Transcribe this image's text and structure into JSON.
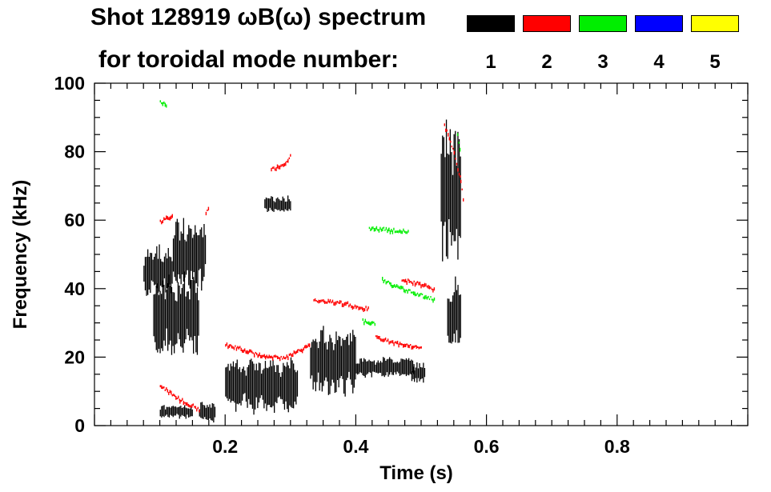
{
  "chart_data": {
    "type": "heatmap",
    "title_line1": "Shot 128919 ωB(ω) spectrum",
    "title_line2": "for toroidal mode number:",
    "xlabel": "Time (s)",
    "ylabel": "Frequency (kHz)",
    "xlim": [
      0.0,
      1.0
    ],
    "ylim": [
      0,
      100
    ],
    "xticks": [
      0.2,
      0.4,
      0.6,
      0.8
    ],
    "yticks": [
      0,
      20,
      40,
      60,
      80,
      100
    ],
    "grid": false,
    "legend_placement": "top-right",
    "legend": [
      {
        "label": "1",
        "color": "#000000"
      },
      {
        "label": "2",
        "color": "#ff0000"
      },
      {
        "label": "3",
        "color": "#00ee00"
      },
      {
        "label": "4",
        "color": "#0000ff"
      },
      {
        "label": "5",
        "color": "#ffff00"
      }
    ],
    "series": [
      {
        "mode": "1",
        "color": "#000000",
        "blobs": [
          {
            "t": [
              0.075,
              0.12
            ],
            "f": [
              38,
              52
            ]
          },
          {
            "t": [
              0.09,
              0.16
            ],
            "f": [
              20,
              45
            ]
          },
          {
            "t": [
              0.12,
              0.17
            ],
            "f": [
              40,
              60
            ]
          },
          {
            "t": [
              0.1,
              0.15
            ],
            "f": [
              2,
              6
            ]
          },
          {
            "t": [
              0.16,
              0.185
            ],
            "f": [
              1,
              7
            ]
          },
          {
            "t": [
              0.2,
              0.31
            ],
            "f": [
              4,
              20
            ]
          },
          {
            "t": [
              0.26,
              0.3
            ],
            "f": [
              62,
              67
            ]
          },
          {
            "t": [
              0.33,
              0.4
            ],
            "f": [
              9,
              28
            ]
          },
          {
            "t": [
              0.4,
              0.49
            ],
            "f": [
              14,
              20
            ]
          },
          {
            "t": [
              0.485,
              0.505
            ],
            "f": [
              12,
              18
            ]
          },
          {
            "t": [
              0.53,
              0.56
            ],
            "f": [
              45,
              90
            ]
          },
          {
            "t": [
              0.54,
              0.56
            ],
            "f": [
              22,
              42
            ]
          }
        ]
      },
      {
        "mode": "2",
        "color": "#ff0000",
        "traces": [
          [
            [
              0.2,
              24
            ],
            [
              0.22,
              23
            ],
            [
              0.25,
              21
            ],
            [
              0.29,
              20
            ],
            [
              0.31,
              22
            ],
            [
              0.33,
              24
            ]
          ],
          [
            [
              0.335,
              37
            ],
            [
              0.36,
              36.5
            ],
            [
              0.385,
              36
            ],
            [
              0.4,
              35
            ],
            [
              0.42,
              34.5
            ]
          ],
          [
            [
              0.43,
              26
            ],
            [
              0.47,
              24
            ],
            [
              0.5,
              23
            ]
          ],
          [
            [
              0.47,
              43
            ],
            [
              0.49,
              42
            ],
            [
              0.51,
              41
            ],
            [
              0.52,
              40
            ]
          ],
          [
            [
              0.27,
              75
            ],
            [
              0.29,
              77
            ],
            [
              0.3,
              79
            ]
          ],
          [
            [
              0.1,
              12
            ],
            [
              0.13,
              8
            ],
            [
              0.16,
              5
            ]
          ],
          [
            [
              0.535,
              88
            ],
            [
              0.55,
              80
            ],
            [
              0.56,
              72
            ],
            [
              0.565,
              65
            ]
          ],
          [
            [
              0.1,
              60
            ],
            [
              0.12,
              62
            ]
          ],
          [
            [
              0.17,
              62
            ],
            [
              0.175,
              64
            ]
          ]
        ]
      },
      {
        "mode": "3",
        "color": "#00ee00",
        "traces": [
          [
            [
              0.44,
              43
            ],
            [
              0.46,
              41
            ],
            [
              0.49,
              39
            ],
            [
              0.52,
              37
            ]
          ],
          [
            [
              0.42,
              58
            ],
            [
              0.45,
              57.5
            ],
            [
              0.48,
              57
            ]
          ],
          [
            [
              0.41,
              31
            ],
            [
              0.43,
              30
            ]
          ],
          [
            [
              0.555,
              85
            ],
            [
              0.56,
              80
            ]
          ],
          [
            [
              0.1,
              95
            ],
            [
              0.11,
              94
            ]
          ]
        ]
      },
      {
        "mode": "4",
        "color": "#0000ff",
        "traces": []
      },
      {
        "mode": "5",
        "color": "#ffff00",
        "traces": []
      }
    ]
  }
}
